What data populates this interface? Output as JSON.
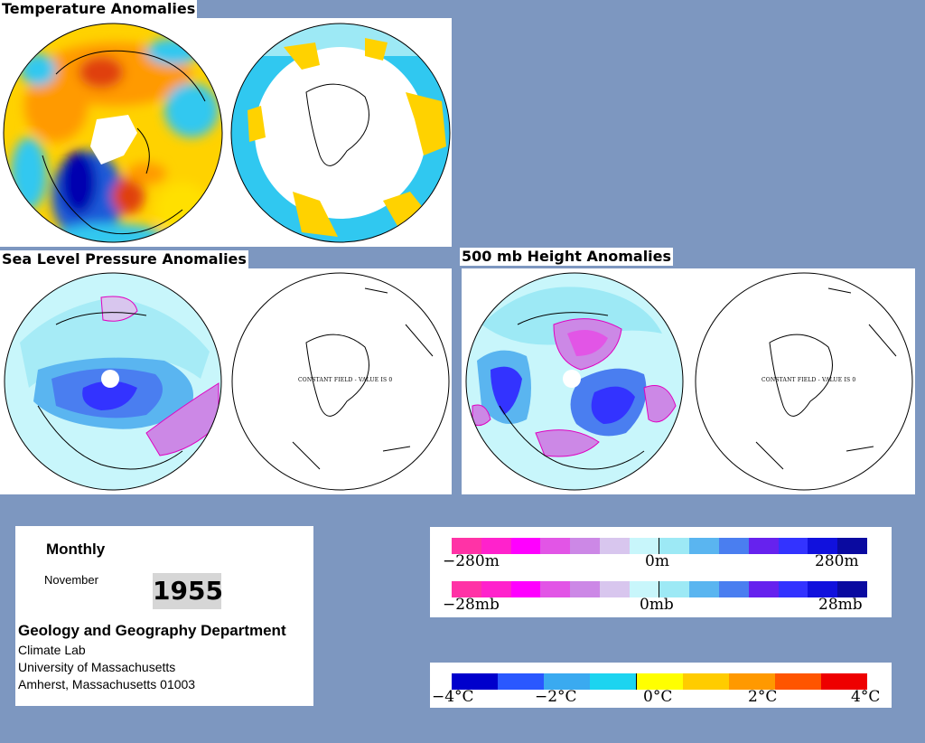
{
  "titles": {
    "temperature": "Temperature Anomalies",
    "slp": "Sea Level Pressure Anomalies",
    "height": "500 mb Height Anomalies"
  },
  "constant_field_label": "CONSTANT FIELD - VALUE IS 0",
  "info": {
    "period": "Monthly",
    "month": "November",
    "year": "1955",
    "department": "Geology and Geography Department",
    "address_lines": [
      "Climate Lab",
      "University of Massachusetts",
      "Amherst, Massachusetts 01003"
    ]
  },
  "legends": {
    "height_scale": {
      "left": "−280m",
      "center": "0m",
      "right": "280m"
    },
    "pressure_scale": {
      "left": "−28mb",
      "center": "0mb",
      "right": "28mb"
    },
    "temperature_scale": {
      "labels": [
        "−4°C",
        "−2°C",
        "0°C",
        "2°C",
        "4°C"
      ]
    }
  },
  "colors": {
    "background": "#7d97c0",
    "anomaly_scale": [
      "#ff33a6",
      "#ff22cc",
      "#ff00ff",
      "#e255e6",
      "#cc88e6",
      "#d8c6ee",
      "#c8f6fb",
      "#9de9f5",
      "#5ab5f0",
      "#4a7ef0",
      "#6622ee",
      "#3333ff",
      "#1111dd",
      "#0a0aa0"
    ],
    "temperature_scale": [
      "#0000cc",
      "#2a58ff",
      "#3aaaf0",
      "#1cd4f0",
      "#ffff00",
      "#ffcc00",
      "#ff9900",
      "#ff5500",
      "#ee0000"
    ]
  }
}
